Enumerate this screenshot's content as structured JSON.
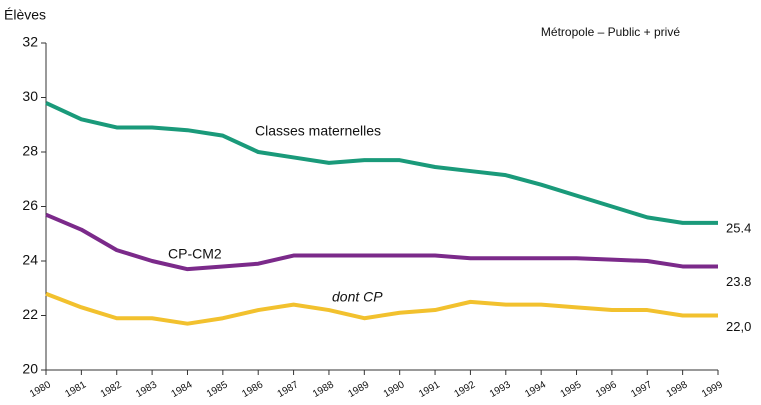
{
  "chart_data": {
    "type": "line",
    "y_label": "Élèves",
    "subtitle": "Métropole – Public + privé",
    "x": [
      1980,
      1981,
      1982,
      1983,
      1984,
      1985,
      1986,
      1987,
      1988,
      1989,
      1990,
      1991,
      1992,
      1993,
      1994,
      1995,
      1996,
      1997,
      1998,
      1999
    ],
    "xlim": [
      1980,
      1999
    ],
    "xticks": [
      1980,
      1981,
      1982,
      1983,
      1984,
      1985,
      1986,
      1987,
      1988,
      1989,
      1990,
      1991,
      1992,
      1993,
      1994,
      1995,
      1996,
      1997,
      1998,
      1999
    ],
    "ylim": [
      20,
      32
    ],
    "yticks": [
      20,
      22,
      24,
      26,
      28,
      30,
      32
    ],
    "grid": false,
    "series": [
      {
        "name": "Classes maternelles",
        "color": "#1a9a7a",
        "values": [
          29.8,
          29.2,
          28.9,
          28.9,
          28.8,
          28.6,
          28.0,
          27.8,
          27.6,
          27.7,
          27.7,
          27.45,
          27.3,
          27.15,
          26.8,
          26.4,
          26.0,
          25.6,
          25.4,
          25.4
        ],
        "value_labels": [
          null,
          null,
          null,
          null,
          null,
          null,
          null,
          null,
          null,
          null,
          null,
          null,
          null,
          null,
          null,
          null,
          null,
          null,
          null,
          "25.4"
        ]
      },
      {
        "name": "CP-CM2",
        "color": "#7b2a8a",
        "values": [
          25.7,
          25.15,
          24.4,
          24.0,
          23.7,
          23.8,
          23.9,
          24.2,
          24.2,
          24.2,
          24.2,
          24.2,
          24.1,
          24.1,
          24.1,
          24.1,
          24.05,
          24.0,
          23.8,
          23.8
        ],
        "value_labels": [
          null,
          null,
          null,
          null,
          null,
          null,
          null,
          null,
          null,
          null,
          null,
          null,
          null,
          null,
          null,
          null,
          null,
          null,
          null,
          "23.8"
        ]
      },
      {
        "name": "dont CP",
        "color": "#f2c12e",
        "values": [
          22.8,
          22.3,
          21.9,
          21.9,
          21.7,
          21.9,
          22.2,
          22.4,
          22.2,
          21.9,
          22.1,
          22.2,
          22.5,
          22.4,
          22.4,
          22.3,
          22.2,
          22.2,
          22.0,
          22.0
        ],
        "value_labels": [
          null,
          null,
          null,
          null,
          null,
          null,
          null,
          null,
          null,
          null,
          null,
          null,
          null,
          null,
          null,
          null,
          null,
          null,
          null,
          "22,0"
        ]
      }
    ]
  }
}
